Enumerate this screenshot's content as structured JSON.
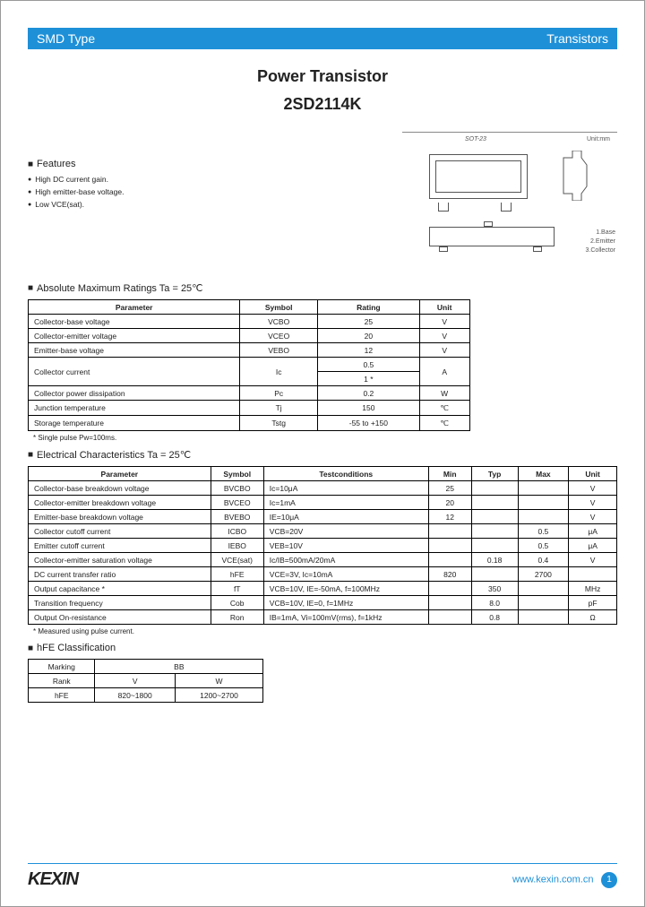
{
  "header": {
    "left": "SMD Type",
    "right": "Transistors"
  },
  "title": {
    "main": "Power Transistor",
    "part": "2SD2114K"
  },
  "features": {
    "heading": "Features",
    "items": [
      "High DC current gain.",
      "High emitter-base voltage.",
      "Low VCE(sat)."
    ]
  },
  "pkg": {
    "name": "SOT-23",
    "unit": "Unit:mm",
    "pins": [
      "1.Base",
      "2.Emitter",
      "3.Collector"
    ]
  },
  "abs": {
    "heading": "Absolute Maximum Ratings Ta = 25℃",
    "columns": [
      "Parameter",
      "Symbol",
      "Rating",
      "Unit"
    ],
    "rows": [
      [
        "Collector-base voltage",
        "VCBO",
        "25",
        "V"
      ],
      [
        "Collector-emitter voltage",
        "VCEO",
        "20",
        "V"
      ],
      [
        "Emitter-base voltage",
        "VEBO",
        "12",
        "V"
      ]
    ],
    "collector_current": {
      "param": "Collector current",
      "symbol": "Ic",
      "r1": "0.5",
      "r2": "1 *",
      "unit": "A"
    },
    "rows2": [
      [
        "Collector power dissipation",
        "Pc",
        "0.2",
        "W"
      ],
      [
        "Junction temperature",
        "Tj",
        "150",
        "℃"
      ],
      [
        "Storage temperature",
        "Tstg",
        "-55 to +150",
        "℃"
      ]
    ],
    "note": "* Single pulse Pw=100ms."
  },
  "elec": {
    "heading": "Electrical Characteristics Ta = 25℃",
    "columns": [
      "Parameter",
      "Symbol",
      "Testconditions",
      "Min",
      "Typ",
      "Max",
      "Unit"
    ],
    "rows": [
      [
        "Collector-base breakdown voltage",
        "BVCBO",
        "Ic=10μA",
        "25",
        "",
        "",
        "V"
      ],
      [
        "Collector-emitter breakdown voltage",
        "BVCEO",
        "Ic=1mA",
        "20",
        "",
        "",
        "V"
      ],
      [
        "Emitter-base breakdown voltage",
        "BVEBO",
        "IE=10μA",
        "12",
        "",
        "",
        "V"
      ],
      [
        "Collector cutoff current",
        "ICBO",
        "VCB=20V",
        "",
        "",
        "0.5",
        "μA"
      ],
      [
        "Emitter cutoff current",
        "IEBO",
        "VEB=10V",
        "",
        "",
        "0.5",
        "μA"
      ],
      [
        "Collector-emitter saturation voltage",
        "VCE(sat)",
        "Ic/IB=500mA/20mA",
        "",
        "0.18",
        "0.4",
        "V"
      ],
      [
        "DC current transfer ratio",
        "hFE",
        "VCE=3V, Ic=10mA",
        "820",
        "",
        "2700",
        ""
      ],
      [
        "Output capacitance *",
        "fT",
        "VCB=10V, IE=-50mA, f=100MHz",
        "",
        "350",
        "",
        "MHz"
      ],
      [
        "Transition frequency",
        "Cob",
        "VCB=10V, IE=0, f=1MHz",
        "",
        "8.0",
        "",
        "pF"
      ],
      [
        "Output On-resistance",
        "Ron",
        "IB=1mA, Vi=100mV(rms), f=1kHz",
        "",
        "0.8",
        "",
        "Ω"
      ]
    ],
    "note": "* Measured using pulse current."
  },
  "hfe": {
    "heading": "hFE Classification",
    "marking_label": "Marking",
    "marking_value": "BB",
    "rank_label": "Rank",
    "ranks": [
      "V",
      "W"
    ],
    "hfe_label": "hFE",
    "hfe_values": [
      "820~1800",
      "1200~2700"
    ]
  },
  "footer": {
    "logo": "KEXIN",
    "url": "www.kexin.com.cn",
    "page": "1"
  }
}
